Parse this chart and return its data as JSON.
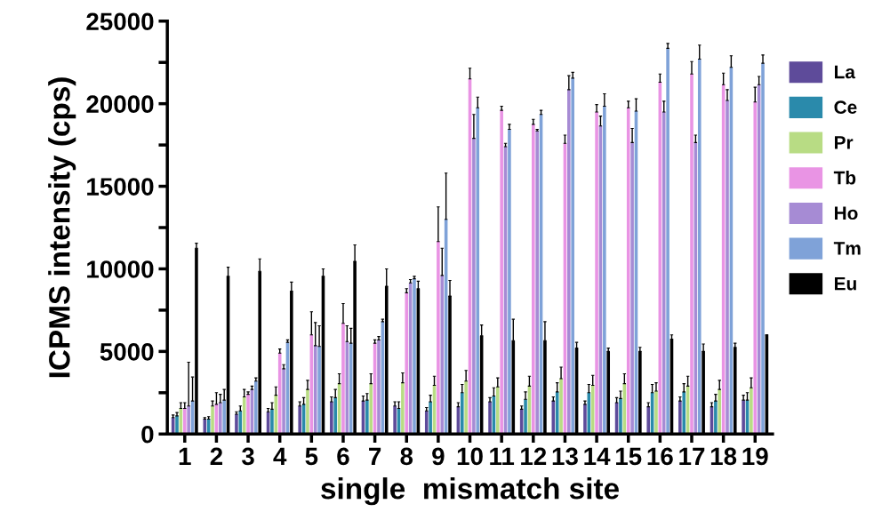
{
  "chart_data": {
    "type": "bar",
    "xlabel": "single  mismatch site",
    "ylabel": "ICPMS intensity (cps)",
    "categories": [
      "1",
      "2",
      "3",
      "4",
      "5",
      "6",
      "7",
      "8",
      "9",
      "10",
      "11",
      "12",
      "13",
      "14",
      "15",
      "16",
      "17",
      "18",
      "19"
    ],
    "ylim": [
      0,
      25000
    ],
    "yticks": [
      0,
      {
        "value": 2500,
        "label": null
      },
      5000,
      {
        "value": 7500,
        "label": null
      },
      10000,
      {
        "value": 12500,
        "label": null
      },
      15000,
      {
        "value": 17500,
        "label": null
      },
      20000,
      {
        "value": 22500,
        "label": null
      },
      25000
    ],
    "grid": false,
    "legend": "right",
    "series": [
      {
        "name": "La",
        "color": "#5e4b9a",
        "values": [
          1000,
          900,
          1200,
          1350,
          1700,
          1950,
          2000,
          1700,
          1400,
          1650,
          1950,
          1500,
          2000,
          1800,
          1900,
          1650,
          2000,
          1650,
          2050
        ],
        "errors": [
          150,
          100,
          150,
          200,
          250,
          300,
          300,
          250,
          200,
          250,
          250,
          200,
          250,
          200,
          300,
          250,
          250,
          250,
          300
        ]
      },
      {
        "name": "Ce",
        "color": "#2a8aab",
        "values": [
          1100,
          900,
          1400,
          1500,
          1800,
          2200,
          2050,
          1550,
          1950,
          2500,
          2300,
          2100,
          2550,
          2500,
          2150,
          2500,
          2550,
          2000,
          2050
        ],
        "errors": [
          200,
          150,
          300,
          400,
          400,
          500,
          400,
          400,
          400,
          500,
          500,
          450,
          550,
          500,
          450,
          500,
          500,
          400,
          450
        ]
      },
      {
        "name": "Pr",
        "color": "#b8dc84",
        "values": [
          1550,
          1700,
          2250,
          2350,
          2700,
          3050,
          3050,
          3100,
          2950,
          3200,
          2850,
          2900,
          3350,
          2950,
          3050,
          2600,
          2900,
          2700,
          2800
        ],
        "errors": [
          350,
          300,
          450,
          500,
          550,
          600,
          600,
          600,
          550,
          650,
          550,
          600,
          700,
          600,
          600,
          500,
          600,
          550,
          600
        ]
      },
      {
        "name": "Tb",
        "color": "#e994e4",
        "values": [
          1550,
          1800,
          2400,
          4900,
          6000,
          6700,
          5500,
          8550,
          11650,
          21500,
          19600,
          18750,
          17600,
          19500,
          19750,
          21300,
          21800,
          21150,
          20100
        ],
        "errors": [
          350,
          700,
          150,
          250,
          1400,
          1200,
          200,
          250,
          2100,
          650,
          250,
          300,
          500,
          450,
          400,
          500,
          750,
          700,
          900
        ]
      },
      {
        "name": "Ho",
        "color": "#a68bd4",
        "values": [
          1700,
          1900,
          2700,
          3950,
          5350,
          5600,
          5700,
          9150,
          9600,
          17900,
          17400,
          18350,
          20850,
          18650,
          17650,
          19500,
          17650,
          20200,
          21150
        ],
        "errors": [
          2650,
          500,
          200,
          250,
          1400,
          950,
          200,
          200,
          1650,
          1450,
          200,
          100,
          850,
          600,
          850,
          650,
          450,
          650,
          500
        ]
      },
      {
        "name": "Tm",
        "color": "#7fa2d8",
        "values": [
          2000,
          2050,
          3200,
          5550,
          5300,
          5500,
          6800,
          9400,
          13000,
          19750,
          18450,
          19350,
          21550,
          19850,
          19550,
          23350,
          22700,
          22200,
          22450
        ],
        "errors": [
          1450,
          650,
          200,
          150,
          1250,
          900,
          150,
          150,
          2800,
          650,
          300,
          250,
          350,
          750,
          750,
          300,
          850,
          700,
          500
        ]
      },
      {
        "name": "Eu",
        "color": "#000000",
        "values": [
          11250,
          9550,
          9850,
          8650,
          9550,
          10450,
          8950,
          8800,
          8350,
          5950,
          5650,
          5650,
          5200,
          5000,
          5000,
          5750,
          5000,
          5250,
          6000
        ],
        "errors": [
          300,
          550,
          750,
          550,
          450,
          1000,
          1050,
          450,
          950,
          650,
          1300,
          1150,
          350,
          200,
          250,
          250,
          450,
          250,
          null
        ]
      }
    ]
  }
}
